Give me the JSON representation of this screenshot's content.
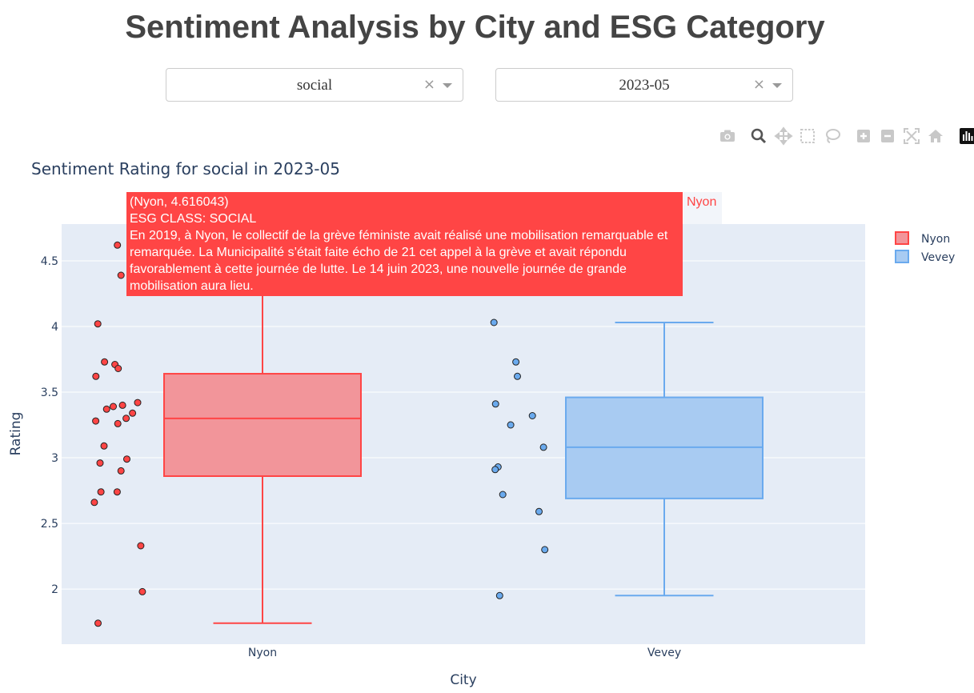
{
  "page": {
    "title": "Sentiment Analysis by City and ESG Category"
  },
  "filters": {
    "category": {
      "value": "social",
      "clear_symbol": "×"
    },
    "month": {
      "value": "2023-05",
      "clear_symbol": "×"
    }
  },
  "modebar": {
    "icons": [
      "camera-icon",
      "zoom-icon",
      "pan-icon",
      "box-select-icon",
      "lasso-icon",
      "zoom-in-icon",
      "zoom-out-icon",
      "autoscale-icon",
      "home-icon",
      "plotly-logo-icon"
    ]
  },
  "chart_data": {
    "type": "box",
    "title": "Sentiment Rating for social in 2023-05",
    "xlabel": "City",
    "ylabel": "Rating",
    "categories": [
      "Nyon",
      "Vevey"
    ],
    "ylim": [
      1.58,
      4.78
    ],
    "yticks": [
      2,
      2.5,
      3,
      3.5,
      4,
      4.5
    ],
    "ytick_labels": [
      "2",
      "2.5",
      "3",
      "3.5",
      "4",
      "4.5"
    ],
    "grid": true,
    "legend_position": "top-right",
    "series": [
      {
        "name": "Nyon",
        "color": "#ff4545",
        "fill": "#f2959a",
        "box": {
          "min": 1.74,
          "q1": 2.86,
          "median": 3.3,
          "q3": 3.64,
          "max": 4.62
        },
        "points": [
          4.62,
          4.39,
          4.02,
          3.73,
          3.71,
          3.68,
          3.62,
          3.42,
          3.4,
          3.39,
          3.37,
          3.34,
          3.3,
          3.28,
          3.26,
          3.09,
          2.99,
          2.96,
          2.9,
          2.74,
          2.74,
          2.66,
          2.33,
          1.98,
          1.74
        ]
      },
      {
        "name": "Vevey",
        "color": "#6aaaee",
        "fill": "#a8cbf2",
        "box": {
          "min": 1.95,
          "q1": 2.69,
          "median": 3.08,
          "q3": 3.46,
          "max": 4.03
        },
        "points": [
          4.03,
          3.73,
          3.62,
          3.41,
          3.32,
          3.25,
          3.08,
          2.93,
          2.91,
          2.72,
          2.59,
          2.3,
          1.95
        ]
      }
    ],
    "hover": {
      "header": "(Nyon, 4.616043)",
      "class_line": "ESG CLASS: SOCIAL",
      "text": "En 2019, à Nyon, le collectif de la grève féministe  avait réalisé une mobilisation remarquable et remarquée. La Municipalité s’était faite écho de   21 cet appel à la grève et avait répondu favorablement à cette journée de lutte. Le 14 juin 2023,  une nouvelle journée de grande mobilisation aura lieu.",
      "trace_name": "Nyon"
    }
  }
}
